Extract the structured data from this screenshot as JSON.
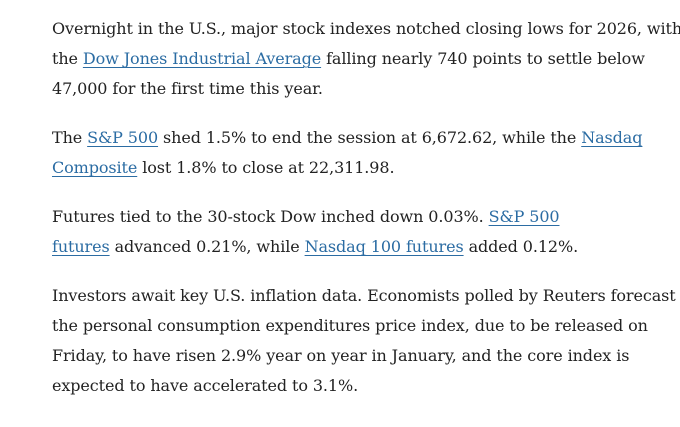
{
  "paragraphs": [
    {
      "line1": "Overnight in the U.S., major stock indexes notched closing lows for 2026, with",
      "line2_before": "the ",
      "link_dow": "Dow Jones Industrial Average",
      "line2_after": " falling nearly 740 points to settle below",
      "line3": "47,000 for the first time this year."
    },
    {
      "before": "The ",
      "link_sp500": "S&P 500",
      "middle": " shed 1.5% to end the session at 6,672.62, while the ",
      "link_nasdaq_1": "Nasdaq",
      "link_nasdaq_2": "Composite",
      "after": " lost 1.8% to close at 22,311.98."
    },
    {
      "before": "Futures tied to the 30-stock Dow inched down 0.03%. ",
      "link_sp_futures_1": "S&P 500",
      "link_sp_futures_2": "futures",
      "middle": " advanced 0.21%, while ",
      "link_nasdaq_futures": "Nasdaq 100 futures",
      "after": " added 0.12%."
    },
    {
      "line1": "Investors await key U.S. inflation data. Economists polled by Reuters forecast",
      "line2": "the personal consumption expenditures price index, due to be released on",
      "line3": "Friday, to have risen 2.9% year on year in January, and the core index is",
      "line4": "expected to have accelerated to 3.1%."
    }
  ],
  "colors": {
    "text": "#222222",
    "link": "#2b6ca3",
    "background": "#ffffff"
  }
}
